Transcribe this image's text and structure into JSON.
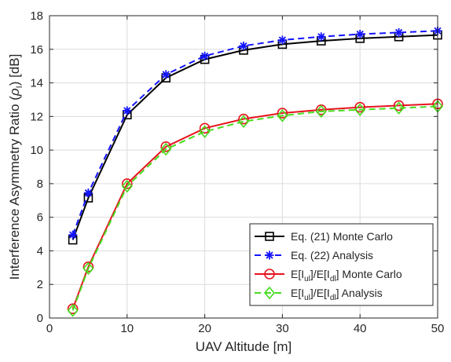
{
  "chart_data": {
    "type": "line",
    "xlabel": "UAV Altitude [m]",
    "ylabel_parts": [
      "Interference Asymmetry Ratio (",
      "ρ",
      "I",
      ") [dB]"
    ],
    "xlim": [
      0,
      50
    ],
    "ylim": [
      0,
      18
    ],
    "xticks": [
      0,
      10,
      20,
      30,
      40,
      50
    ],
    "yticks": [
      0,
      2,
      4,
      6,
      8,
      10,
      12,
      14,
      16,
      18
    ],
    "grid": true,
    "legend_position": "bottom-right",
    "x": [
      3,
      5,
      10,
      15,
      20,
      25,
      30,
      35,
      40,
      45,
      50
    ],
    "series": [
      {
        "name_parts": [
          "Eq. (21) Monte Carlo"
        ],
        "color": "#000000",
        "dash": "solid",
        "marker": "square",
        "values": [
          4.65,
          7.15,
          12.1,
          14.3,
          15.4,
          15.95,
          16.3,
          16.5,
          16.65,
          16.75,
          16.85
        ]
      },
      {
        "name_parts": [
          "Eq. (22) Analysis"
        ],
        "color": "#1414ff",
        "dash": "dashed",
        "marker": "asterisk",
        "values": [
          4.95,
          7.45,
          12.35,
          14.5,
          15.6,
          16.2,
          16.55,
          16.75,
          16.9,
          17.0,
          17.1
        ]
      },
      {
        "name_parts": [
          "E[I",
          "ul",
          "]/E[I",
          "dl",
          "] Monte Carlo"
        ],
        "color": "#e6141e",
        "dash": "solid",
        "marker": "circle",
        "values": [
          0.55,
          3.05,
          8.0,
          10.2,
          11.3,
          11.85,
          12.2,
          12.4,
          12.55,
          12.65,
          12.75
        ]
      },
      {
        "name_parts": [
          "E[I",
          "ul",
          "]/E[I",
          "dl",
          "] Analysis"
        ],
        "color": "#46dc1e",
        "dash": "dashed",
        "marker": "diamond",
        "values": [
          0.45,
          2.95,
          7.85,
          10.05,
          11.1,
          11.7,
          12.05,
          12.3,
          12.4,
          12.5,
          12.6
        ]
      }
    ]
  }
}
